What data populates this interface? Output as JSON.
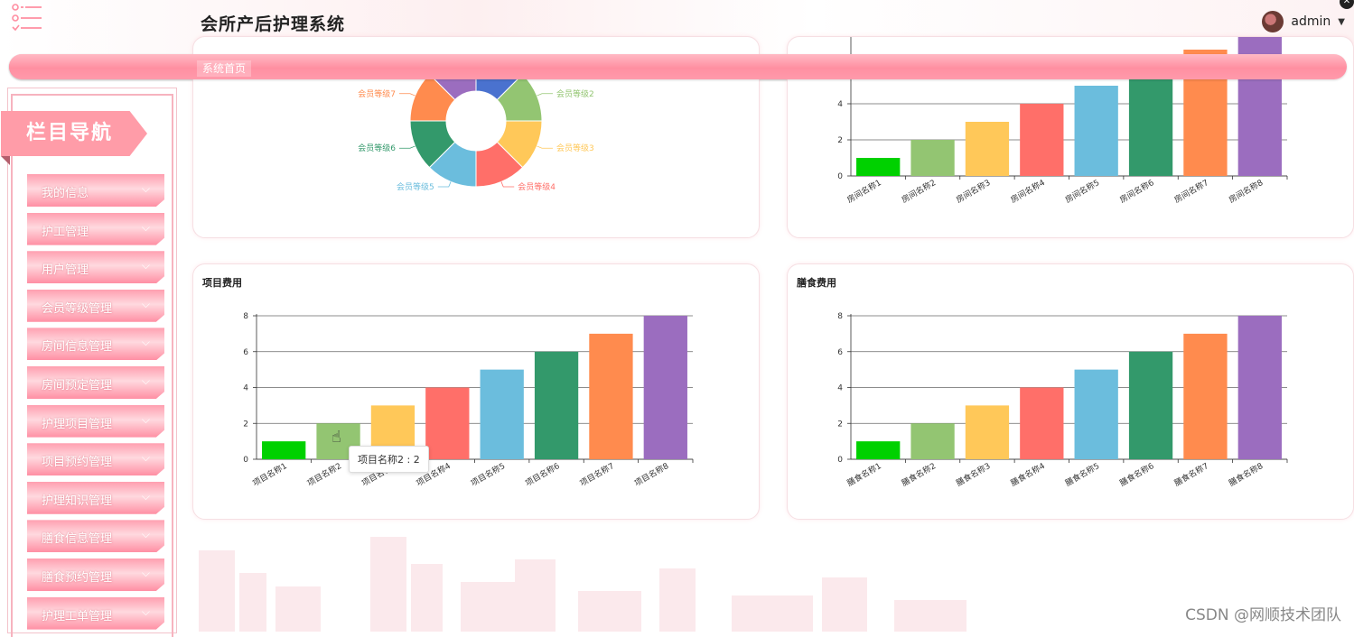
{
  "header": {
    "title": "会所产后护理系统",
    "user": "admin"
  },
  "nav": {
    "breadcrumb": "系统首页"
  },
  "sidebar": {
    "title": "栏目导航",
    "items": [
      {
        "label": "我的信息"
      },
      {
        "label": "护工管理"
      },
      {
        "label": "用户管理"
      },
      {
        "label": "会员等级管理"
      },
      {
        "label": "房间信息管理"
      },
      {
        "label": "房间预定管理"
      },
      {
        "label": "护理项目管理"
      },
      {
        "label": "项目预约管理"
      },
      {
        "label": "护理知识管理"
      },
      {
        "label": "膳食信息管理"
      },
      {
        "label": "膳食预约管理"
      },
      {
        "label": "护理工单管理"
      }
    ]
  },
  "colors": {
    "series": [
      "#00d100",
      "#93c572",
      "#ffc859",
      "#ff6f69",
      "#6bbddd",
      "#33996b",
      "#ff8b4e",
      "#9b6dbf",
      "#4a72cf"
    ],
    "accent": "#ff9ca8"
  },
  "chart_data": [
    {
      "type": "pie",
      "title": "",
      "categories": [
        "会员等级2",
        "会员等级3",
        "会员等级4",
        "会员等级5",
        "会员等级6",
        "会员等级7"
      ],
      "values": [
        1,
        1,
        1,
        1,
        1,
        1
      ]
    },
    {
      "type": "bar",
      "title": "",
      "categories": [
        "房间名称1",
        "房间名称2",
        "房间名称3",
        "房间名称4",
        "房间名称5",
        "房间名称6",
        "房间名称7",
        "房间名称8"
      ],
      "values": [
        1,
        2,
        3,
        4,
        5,
        6,
        7,
        8
      ],
      "yticks": [
        "0",
        "2",
        "4"
      ],
      "ylim": [
        0,
        8
      ]
    },
    {
      "type": "bar",
      "title": "项目费用",
      "categories": [
        "项目名称1",
        "项目名称2",
        "项目名称3",
        "项目名称4",
        "项目名称5",
        "项目名称6",
        "项目名称7",
        "项目名称8"
      ],
      "values": [
        1,
        2,
        3,
        4,
        5,
        6,
        7,
        8
      ],
      "yticks": [
        "0",
        "2",
        "4",
        "6",
        "8"
      ],
      "ylim": [
        0,
        8
      ],
      "tooltip": "项目名称2 : 2"
    },
    {
      "type": "bar",
      "title": "膳食费用",
      "categories": [
        "膳食名称1",
        "膳食名称2",
        "膳食名称3",
        "膳食名称4",
        "膳食名称5",
        "膳食名称6",
        "膳食名称7",
        "膳食名称8"
      ],
      "values": [
        1,
        2,
        3,
        4,
        5,
        6,
        7,
        8
      ],
      "yticks": [
        "0",
        "2",
        "4",
        "6",
        "8"
      ],
      "ylim": [
        0,
        8
      ]
    }
  ],
  "watermark": "CSDN @网顺技术团队"
}
